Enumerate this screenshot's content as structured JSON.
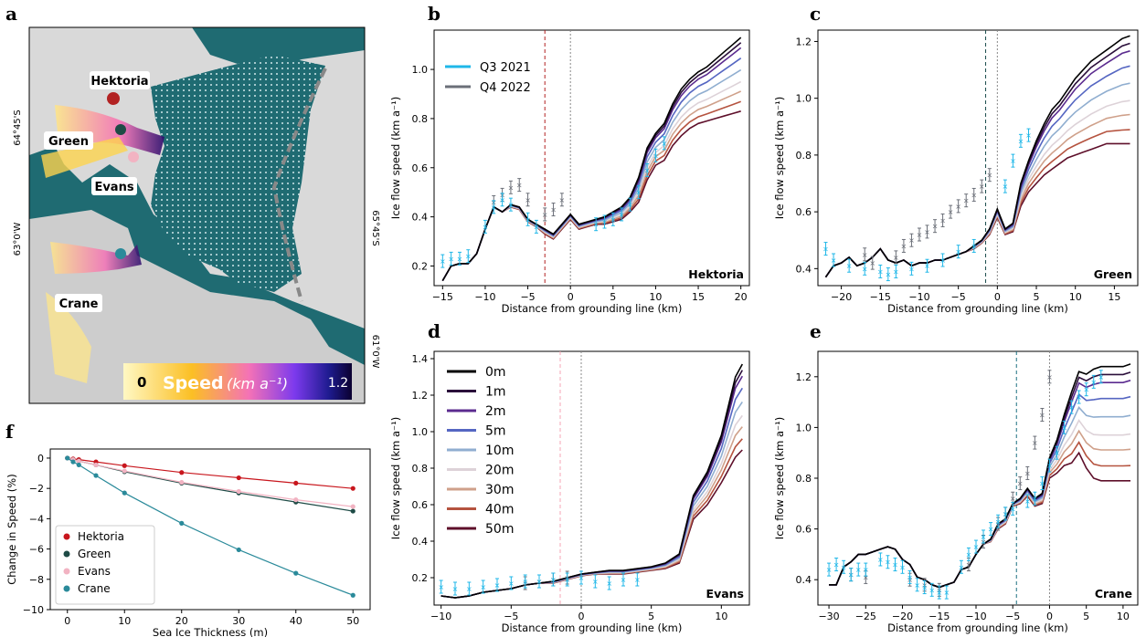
{
  "panel_letters": [
    "a",
    "b",
    "c",
    "d",
    "e",
    "f"
  ],
  "map": {
    "labels": [
      "Hektoria",
      "Green",
      "Evans",
      "Crane"
    ],
    "coords": [
      "64°45'S",
      "63°0'W",
      "65°45'S",
      "61°0'W"
    ],
    "colorbar": {
      "min": "0",
      "max": "1.2",
      "title": "Speed",
      "unit": "(km a⁻¹)"
    },
    "colors": {
      "sea": "#1f6b72",
      "speed_low": "#fde68a",
      "speed_mid": "#f472b6",
      "speed_high": "#3b0f9e",
      "speed_max": "#0b0030"
    }
  },
  "depths": [
    "0m",
    "1m",
    "2m",
    "5m",
    "10m",
    "20m",
    "30m",
    "40m",
    "50m"
  ],
  "depth_colors": [
    "#000000",
    "#2a0e3a",
    "#5b2b8f",
    "#5566c2",
    "#90aed0",
    "#ddd2d8",
    "#cfa08a",
    "#b5533f",
    "#5e0f2a"
  ],
  "quarter_legend": [
    {
      "label": "Q3 2021",
      "color": "#1fb7e8"
    },
    {
      "label": "Q4 2022",
      "color": "#6b6f78"
    }
  ],
  "chart_data": [
    {
      "panel": "b",
      "type": "line",
      "glacier": "Hektoria",
      "xlabel": "Distance from grounding line (km)",
      "ylabel": "Ice flow speed (km a⁻¹)",
      "xlim": [
        -16,
        21
      ],
      "ylim": [
        0.12,
        1.16
      ],
      "xticks": [
        -15,
        -10,
        -5,
        0,
        5,
        10,
        15,
        20
      ],
      "yticks": [
        0.2,
        0.4,
        0.6,
        0.8,
        1.0
      ],
      "vline": {
        "x": -3,
        "color": "#b22222"
      },
      "x": [
        -15,
        -14,
        -13,
        -12,
        -11,
        -10,
        -9,
        -8,
        -7,
        -6,
        -5,
        -4,
        -3,
        -2,
        -1,
        0,
        1,
        2,
        3,
        4,
        5,
        6,
        7,
        8,
        9,
        10,
        11,
        12,
        13,
        14,
        15,
        16,
        17,
        18,
        19,
        20
      ],
      "base": [
        0.14,
        0.2,
        0.21,
        0.21,
        0.25,
        0.35,
        0.44,
        0.42,
        0.44,
        0.43,
        0.38,
        0.36,
        0.33,
        0.31,
        0.35,
        0.39,
        0.35,
        0.36,
        0.37,
        0.37,
        0.38,
        0.39,
        0.42,
        0.46,
        0.55,
        0.61,
        0.63,
        0.69,
        0.73,
        0.76,
        0.78,
        0.79,
        0.8,
        0.81,
        0.82,
        0.83
      ],
      "top": [
        0.14,
        0.2,
        0.21,
        0.21,
        0.25,
        0.35,
        0.44,
        0.42,
        0.45,
        0.44,
        0.39,
        0.37,
        0.35,
        0.33,
        0.37,
        0.41,
        0.37,
        0.38,
        0.39,
        0.4,
        0.42,
        0.44,
        0.48,
        0.56,
        0.68,
        0.74,
        0.78,
        0.86,
        0.92,
        0.96,
        0.99,
        1.01,
        1.04,
        1.07,
        1.1,
        1.13
      ],
      "obs_q3": {
        "x": [
          -15,
          -14,
          -13,
          -12,
          -10,
          -9,
          -8,
          -7,
          -5,
          -4,
          3,
          4,
          5,
          6,
          7,
          8,
          9,
          10,
          11
        ],
        "y": [
          0.22,
          0.23,
          0.23,
          0.24,
          0.36,
          0.44,
          0.47,
          0.45,
          0.39,
          0.36,
          0.37,
          0.38,
          0.39,
          0.41,
          0.45,
          0.5,
          0.59,
          0.65,
          0.7
        ]
      },
      "obs_q4": {
        "x": [
          -9,
          -8,
          -7,
          -6,
          -5,
          -3,
          -2,
          -1
        ],
        "y": [
          0.46,
          0.49,
          0.52,
          0.53,
          0.47,
          0.41,
          0.43,
          0.47
        ]
      }
    },
    {
      "panel": "c",
      "type": "line",
      "glacier": "Green",
      "xlabel": "Distance from grounding line (km)",
      "ylabel": "Ice flow speed (km a⁻¹)",
      "xlim": [
        -23,
        18
      ],
      "ylim": [
        0.34,
        1.24
      ],
      "xticks": [
        -20,
        -15,
        -10,
        -5,
        0,
        5,
        10,
        15
      ],
      "yticks": [
        0.4,
        0.6,
        0.8,
        1.0,
        1.2
      ],
      "vline": {
        "x": -1.5,
        "color": "#1b4d4d"
      },
      "x": [
        -22,
        -21,
        -20,
        -19,
        -18,
        -17,
        -16,
        -15,
        -14,
        -13,
        -12,
        -11,
        -10,
        -9,
        -8,
        -7,
        -6,
        -5,
        -4,
        -3,
        -2,
        -1,
        0,
        1,
        2,
        3,
        4,
        5,
        6,
        7,
        8,
        9,
        10,
        11,
        12,
        13,
        14,
        15,
        16,
        17
      ],
      "base": [
        0.37,
        0.41,
        0.42,
        0.44,
        0.41,
        0.42,
        0.44,
        0.47,
        0.43,
        0.42,
        0.43,
        0.41,
        0.42,
        0.42,
        0.43,
        0.43,
        0.44,
        0.45,
        0.46,
        0.47,
        0.49,
        0.52,
        0.58,
        0.52,
        0.53,
        0.62,
        0.67,
        0.7,
        0.73,
        0.75,
        0.77,
        0.79,
        0.8,
        0.81,
        0.82,
        0.83,
        0.84,
        0.84,
        0.84,
        0.84
      ],
      "top": [
        0.37,
        0.41,
        0.42,
        0.44,
        0.41,
        0.42,
        0.44,
        0.47,
        0.43,
        0.42,
        0.43,
        0.41,
        0.42,
        0.42,
        0.43,
        0.43,
        0.44,
        0.45,
        0.46,
        0.48,
        0.5,
        0.54,
        0.61,
        0.54,
        0.56,
        0.7,
        0.78,
        0.85,
        0.91,
        0.96,
        0.99,
        1.03,
        1.07,
        1.1,
        1.13,
        1.15,
        1.17,
        1.19,
        1.21,
        1.22
      ],
      "obs_q3": {
        "x": [
          -22,
          -21,
          -19,
          -17,
          -15,
          -14,
          -13,
          -11,
          -9,
          -7,
          -5,
          -3,
          1,
          2,
          3,
          4
        ],
        "y": [
          0.47,
          0.43,
          0.41,
          0.4,
          0.39,
          0.38,
          0.39,
          0.4,
          0.41,
          0.43,
          0.46,
          0.48,
          0.69,
          0.78,
          0.85,
          0.87
        ]
      },
      "obs_q4": {
        "x": [
          -17,
          -16,
          -13,
          -12,
          -11,
          -10,
          -9,
          -8,
          -7,
          -6,
          -5,
          -4,
          -3,
          -2,
          -1
        ],
        "y": [
          0.45,
          0.42,
          0.44,
          0.48,
          0.5,
          0.52,
          0.53,
          0.55,
          0.57,
          0.6,
          0.62,
          0.64,
          0.66,
          0.69,
          0.73
        ]
      }
    },
    {
      "panel": "d",
      "type": "line",
      "glacier": "Evans",
      "xlabel": "Distance from grounding line (km)",
      "ylabel": "Ice flow speed (km a⁻¹)",
      "xlim": [
        -10.5,
        12
      ],
      "ylim": [
        0.05,
        1.44
      ],
      "xticks": [
        -10,
        -5,
        0,
        5,
        10
      ],
      "yticks": [
        0.2,
        0.4,
        0.6,
        0.8,
        1.0,
        1.2,
        1.4
      ],
      "vline": {
        "x": -1.5,
        "color": "#f4a4b4"
      },
      "x": [
        -10,
        -9,
        -8,
        -7,
        -6,
        -5,
        -4,
        -3,
        -2,
        -1,
        0,
        1,
        2,
        3,
        4,
        5,
        6,
        7,
        8,
        9,
        10,
        11,
        11.5
      ],
      "base": [
        0.1,
        0.09,
        0.1,
        0.12,
        0.13,
        0.14,
        0.16,
        0.17,
        0.17,
        0.19,
        0.21,
        0.22,
        0.22,
        0.22,
        0.23,
        0.24,
        0.25,
        0.28,
        0.52,
        0.6,
        0.72,
        0.86,
        0.9
      ],
      "top": [
        0.1,
        0.09,
        0.1,
        0.12,
        0.13,
        0.14,
        0.16,
        0.17,
        0.18,
        0.2,
        0.22,
        0.23,
        0.24,
        0.24,
        0.25,
        0.26,
        0.28,
        0.33,
        0.65,
        0.78,
        0.98,
        1.3,
        1.37
      ],
      "obs_q3": {
        "x": [
          -10,
          -9,
          -8,
          -7,
          -6,
          -5,
          -4,
          -3,
          -2,
          -1,
          0,
          1,
          2,
          3,
          4
        ],
        "y": [
          0.15,
          0.14,
          0.14,
          0.15,
          0.16,
          0.17,
          0.18,
          0.18,
          0.19,
          0.19,
          0.2,
          0.18,
          0.17,
          0.19,
          0.19
        ]
      },
      "obs_q4": {
        "x": [
          -4,
          -3,
          -2,
          -1
        ],
        "y": [
          0.17,
          0.18,
          0.19,
          0.2
        ]
      }
    },
    {
      "panel": "e",
      "type": "line",
      "glacier": "Crane",
      "xlabel": "Distance from grounding line (km)",
      "ylabel": "Ice flow speed (km a⁻¹)",
      "xlim": [
        -31.5,
        12
      ],
      "ylim": [
        0.3,
        1.3
      ],
      "xticks": [
        -30,
        -25,
        -20,
        -15,
        -10,
        -5,
        0,
        5,
        10
      ],
      "yticks": [
        0.4,
        0.6,
        0.8,
        1.0,
        1.2
      ],
      "vline": {
        "x": -4.5,
        "color": "#1b6f80"
      },
      "x": [
        -30,
        -29,
        -28,
        -27,
        -26,
        -25,
        -24,
        -23,
        -22,
        -21,
        -20,
        -19,
        -18,
        -17,
        -16,
        -15,
        -14,
        -13,
        -12,
        -11,
        -10,
        -9,
        -8,
        -7,
        -6,
        -5,
        -4,
        -3,
        -2,
        -1,
        0,
        1,
        2,
        3,
        4,
        5,
        6,
        7,
        8,
        9,
        10,
        11
      ],
      "base": [
        0.38,
        0.38,
        0.45,
        0.47,
        0.5,
        0.5,
        0.51,
        0.52,
        0.53,
        0.52,
        0.48,
        0.46,
        0.41,
        0.4,
        0.38,
        0.37,
        0.38,
        0.39,
        0.44,
        0.45,
        0.5,
        0.54,
        0.55,
        0.6,
        0.62,
        0.69,
        0.7,
        0.73,
        0.69,
        0.7,
        0.8,
        0.82,
        0.85,
        0.86,
        0.9,
        0.84,
        0.8,
        0.79,
        0.79,
        0.79,
        0.79,
        0.79
      ],
      "top": [
        0.38,
        0.38,
        0.45,
        0.47,
        0.5,
        0.5,
        0.51,
        0.52,
        0.53,
        0.52,
        0.48,
        0.46,
        0.41,
        0.4,
        0.38,
        0.37,
        0.38,
        0.39,
        0.44,
        0.45,
        0.5,
        0.54,
        0.56,
        0.62,
        0.64,
        0.7,
        0.72,
        0.76,
        0.72,
        0.74,
        0.88,
        0.95,
        1.05,
        1.14,
        1.22,
        1.21,
        1.23,
        1.24,
        1.24,
        1.24,
        1.24,
        1.25
      ],
      "obs_q3": {
        "x": [
          -30,
          -29,
          -28,
          -27,
          -26,
          -25,
          -23,
          -22,
          -21,
          -20,
          -19,
          -18,
          -17,
          -16,
          -15,
          -14,
          -12,
          -11,
          -10,
          -9,
          -8,
          -7,
          -6,
          -5,
          -3,
          -2,
          -1,
          0,
          1,
          2,
          3,
          4,
          5,
          6,
          7
        ],
        "y": [
          0.44,
          0.46,
          0.45,
          0.42,
          0.44,
          0.44,
          0.48,
          0.47,
          0.46,
          0.45,
          0.41,
          0.38,
          0.37,
          0.36,
          0.35,
          0.35,
          0.45,
          0.5,
          0.53,
          0.57,
          0.6,
          0.63,
          0.66,
          0.68,
          0.71,
          0.72,
          0.78,
          0.85,
          0.9,
          1.0,
          1.08,
          1.12,
          1.15,
          1.18,
          1.2
        ]
      },
      "obs_q4": {
        "x": [
          -27,
          -25,
          -19,
          -17,
          -15,
          -11,
          -9,
          -7,
          -6,
          -5,
          -4,
          -3,
          -2,
          -1,
          0
        ],
        "y": [
          0.42,
          0.41,
          0.4,
          0.38,
          0.36,
          0.46,
          0.55,
          0.62,
          0.66,
          0.72,
          0.78,
          0.82,
          0.94,
          1.05,
          1.2
        ]
      }
    },
    {
      "panel": "f",
      "type": "line",
      "xlabel": "Sea Ice Thickness (m)",
      "ylabel": "Change in Speed (%)",
      "xlim": [
        -3,
        53
      ],
      "ylim": [
        -10,
        0.6
      ],
      "xticks": [
        0,
        10,
        20,
        30,
        40,
        50
      ],
      "yticks": [
        0,
        -2,
        -4,
        -6,
        -8,
        -10
      ],
      "x": [
        0,
        1,
        2,
        5,
        10,
        20,
        30,
        40,
        50
      ],
      "series": [
        {
          "name": "Hektoria",
          "color": "#c8161d",
          "values": [
            0,
            -0.05,
            -0.1,
            -0.25,
            -0.5,
            -0.95,
            -1.3,
            -1.65,
            -2.0
          ]
        },
        {
          "name": "Green",
          "color": "#1e4b46",
          "values": [
            0,
            -0.1,
            -0.2,
            -0.45,
            -0.9,
            -1.65,
            -2.3,
            -2.9,
            -3.5
          ]
        },
        {
          "name": "Evans",
          "color": "#f2b3c2",
          "values": [
            0,
            -0.1,
            -0.2,
            -0.45,
            -0.85,
            -1.6,
            -2.2,
            -2.75,
            -3.2
          ]
        },
        {
          "name": "Crane",
          "color": "#2a8a9a",
          "values": [
            0,
            -0.25,
            -0.45,
            -1.15,
            -2.3,
            -4.3,
            -6.05,
            -7.6,
            -9.05
          ]
        }
      ]
    }
  ]
}
